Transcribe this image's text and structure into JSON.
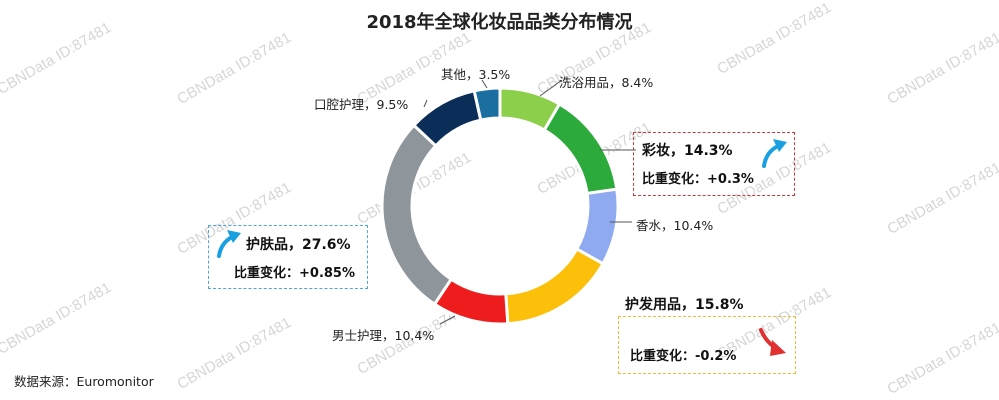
{
  "title": "2018年全球化妆品品类分布情况",
  "source": "数据来源：Euromonitor",
  "watermark_text": "CBNData ID:87481",
  "colors": {
    "skincare_box": "#4aa6de",
    "makeup_box": "#c93a3a",
    "hair_box": "#f0b93b",
    "arrow_up": "#1a9fe0",
    "arrow_down": "#e03030"
  },
  "chart_data": {
    "type": "pie",
    "donut": true,
    "title": "2018年全球化妆品品类分布情况",
    "categories": [
      "洗浴用品",
      "彩妆",
      "香水",
      "护发用品",
      "男士护理",
      "护肤品",
      "口腔护理",
      "其他"
    ],
    "values": [
      8.4,
      14.3,
      10.4,
      15.8,
      10.4,
      27.6,
      9.5,
      3.5
    ],
    "unit": "%",
    "colors": [
      "#8ccf4a",
      "#2daa3c",
      "#8faaf0",
      "#fcbf0a",
      "#ee1c1c",
      "#8e959b",
      "#0b2e58",
      "#1a6ea0"
    ],
    "labels": [
      "洗浴用品，8.4%",
      "彩妆，14.3%",
      "香水，10.4%",
      "护发用品，15.8%",
      "男士护理，10.4%",
      "护肤品，27.6%",
      "口腔护理，9.5%",
      "其他，3.5%"
    ]
  },
  "callouts": {
    "makeup_change": "比重变化：+0.3%",
    "skincare_change": "比重变化：+0.85%",
    "hair_change": "比重变化：-0.2%"
  },
  "arrows": {
    "makeup": "arrow-up-icon",
    "skincare": "arrow-up-icon",
    "hair": "arrow-down-icon"
  }
}
